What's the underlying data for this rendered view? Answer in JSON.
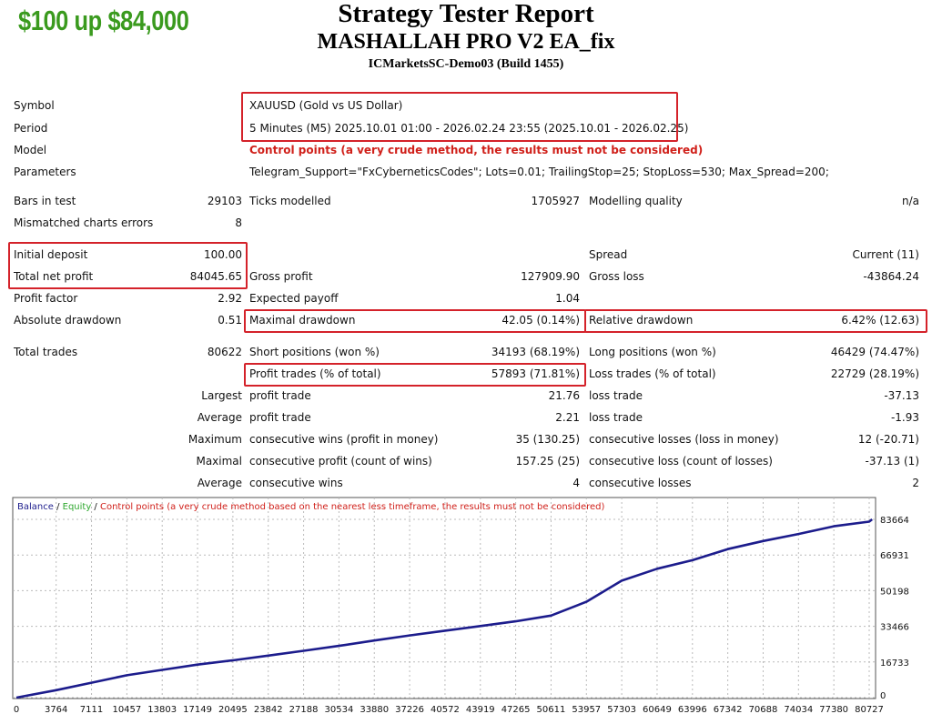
{
  "header": {
    "promo": "$100 up $84,000",
    "title": "Strategy Tester Report",
    "ea_name": "MASHALLAH PRO V2 EA_fix",
    "server": "ICMarketsSC-Demo03 (Build 1455)"
  },
  "info": [
    {
      "label": "Symbol",
      "value": "XAUUSD (Gold vs US Dollar)"
    },
    {
      "label": "Period",
      "value": "5 Minutes (M5) 2025.10.01 01:00 - 2026.02.24 23:55 (2025.10.01 - 2026.02.25)"
    },
    {
      "label": "Model",
      "value": "Control points (a very crude method, the results must not be considered)",
      "warning": true
    },
    {
      "label": "Parameters",
      "value": "Telegram_Support=\"FxCyberneticsCodes\"; Lots=0.01; TrailingStop=25; StopLoss=530; Max_Spread=200;"
    }
  ],
  "stats": [
    [
      "Bars in test",
      "29103",
      "Ticks modelled",
      "1705927",
      "Modelling quality",
      "n/a"
    ],
    [
      "Mismatched charts errors",
      "8",
      "",
      "",
      "",
      ""
    ],
    [
      "Initial deposit",
      "100.00",
      "",
      "",
      "Spread",
      "Current (11)"
    ],
    [
      "Total net profit",
      "84045.65",
      "Gross profit",
      "127909.90",
      "Gross loss",
      "-43864.24"
    ],
    [
      "Profit factor",
      "2.92",
      "Expected payoff",
      "1.04",
      "",
      ""
    ],
    [
      "Absolute drawdown",
      "0.51",
      "Maximal drawdown",
      "42.05 (0.14%)",
      "Relative drawdown",
      "6.42% (12.63)"
    ],
    [
      "Total trades",
      "80622",
      "Short positions (won %)",
      "34193 (68.19%)",
      "Long positions (won %)",
      "46429 (74.47%)"
    ],
    [
      "",
      "",
      "Profit trades (% of total)",
      "57893 (71.81%)",
      "Loss trades (% of total)",
      "22729 (28.19%)"
    ],
    [
      "Largest",
      "",
      "profit trade",
      "21.76",
      "loss trade",
      "-37.13"
    ],
    [
      "Average",
      "",
      "profit trade",
      "2.21",
      "loss trade",
      "-1.93"
    ],
    [
      "Maximum",
      "",
      "consecutive wins (profit in money)",
      "35 (130.25)",
      "consecutive losses (loss in money)",
      "12 (-20.71)"
    ],
    [
      "Maximal",
      "",
      "consecutive profit (count of wins)",
      "157.25 (25)",
      "consecutive loss (count of losses)",
      "-37.13 (1)"
    ],
    [
      "Average",
      "",
      "consecutive wins",
      "4",
      "consecutive losses",
      "2"
    ]
  ],
  "colors": {
    "highlight_box": "#d4222a",
    "balance": "#1c1c8c",
    "equity": "#2fa82f",
    "warning": "#d0201a",
    "promo": "#3a9a1e"
  },
  "chart_data": {
    "type": "line",
    "legend": {
      "balance": "Balance",
      "equity": "Equity",
      "note": "Control points (a very crude method based on the nearest less timeframe, the results must not be considered)",
      "sep": " / "
    },
    "xlim": [
      0,
      81330
    ],
    "ylim": [
      0,
      93400
    ],
    "grid": true,
    "x_ticks": [
      0,
      3764,
      7111,
      10457,
      13803,
      17149,
      20495,
      23842,
      27188,
      30534,
      33880,
      37226,
      40572,
      43919,
      47265,
      50611,
      53957,
      57303,
      60649,
      63996,
      67342,
      70688,
      74034,
      77380,
      80727
    ],
    "y_ticks": [
      0,
      16733,
      33466,
      50198,
      66931,
      83664
    ],
    "series": [
      {
        "name": "Balance",
        "x": [
          0,
          3764,
          7111,
          10457,
          13803,
          17149,
          20495,
          23842,
          27188,
          30534,
          33880,
          37226,
          40572,
          43919,
          47265,
          50611,
          53957,
          57303,
          60649,
          63996,
          67342,
          70688,
          74034,
          77380,
          80727,
          81000
        ],
        "y": [
          0,
          3500,
          7000,
          10500,
          13000,
          15500,
          17500,
          19700,
          22000,
          24300,
          26800,
          29200,
          31400,
          33600,
          35800,
          38500,
          45000,
          54900,
          60500,
          64500,
          69700,
          73500,
          76800,
          80400,
          82600,
          83664
        ]
      }
    ]
  }
}
